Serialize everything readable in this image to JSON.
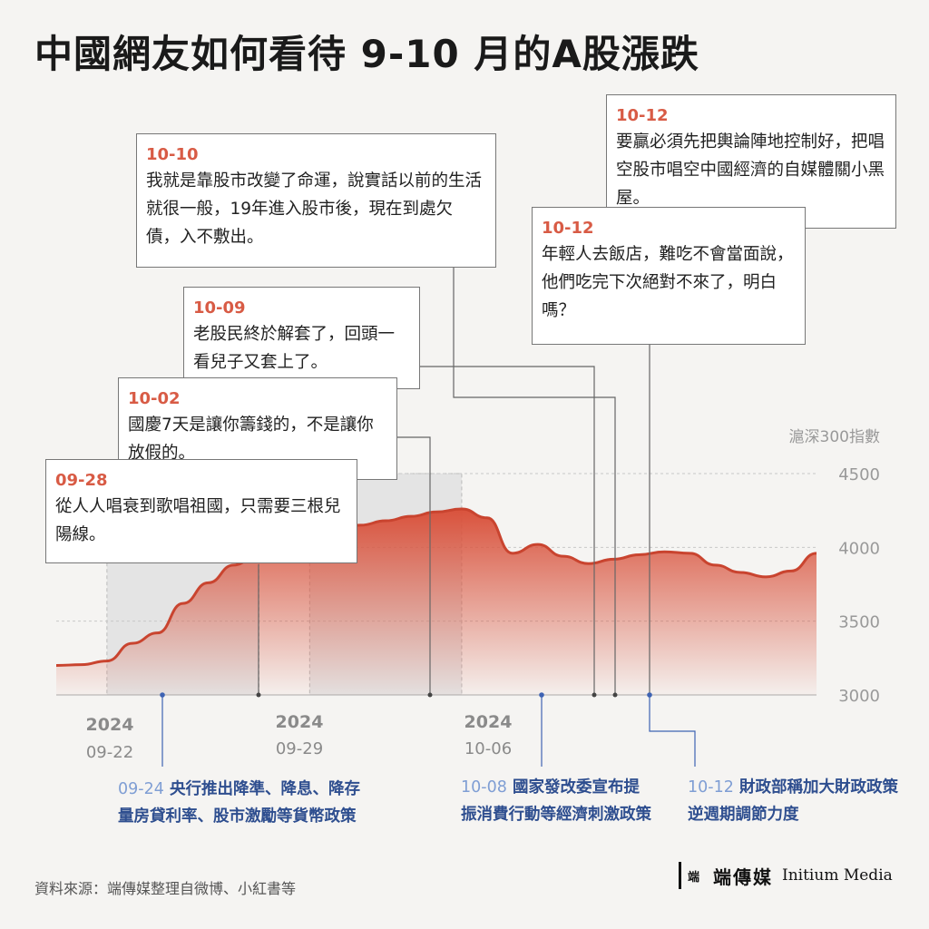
{
  "title": "中國網友如何看待 9-10 月的A股漲跌",
  "chart_data": {
    "type": "area",
    "ylabel": "滬深300指數",
    "ylim": [
      3000,
      4500
    ],
    "yticks": [
      3000,
      3500,
      4000,
      4500
    ],
    "x_tick_labels": [
      {
        "year": "2024",
        "date": "09-22"
      },
      {
        "year": "2024",
        "date": "09-29"
      },
      {
        "year": "2024",
        "date": "10-06"
      }
    ],
    "x": [
      "09-20",
      "09-22",
      "09-23",
      "09-24",
      "09-25",
      "09-26",
      "09-27",
      "09-28",
      "09-29",
      "09-30",
      "10-01",
      "10-02",
      "10-03",
      "10-04",
      "10-05",
      "10-06",
      "10-07",
      "10-08",
      "10-09",
      "10-10",
      "10-11",
      "10-12",
      "10-13",
      "10-14",
      "10-15",
      "10-16",
      "10-17",
      "10-18",
      "10-19",
      "10-20",
      "10-21"
    ],
    "values": [
      3200,
      3205,
      3230,
      3350,
      3420,
      3620,
      3760,
      3880,
      3960,
      4030,
      4080,
      4120,
      4150,
      4180,
      4210,
      4240,
      4260,
      4200,
      3960,
      4020,
      3940,
      3890,
      3920,
      3950,
      3970,
      3960,
      3880,
      3830,
      3800,
      3840,
      3960
    ],
    "shaded_ranges": [
      [
        "09-23",
        "09-29"
      ],
      [
        "10-01",
        "10-07"
      ]
    ]
  },
  "quotes": [
    {
      "date": "10-10",
      "text": "我就是靠股市改變了命運，說實話以前的生活就很一般，19年進入股市後，現在到處欠債，入不敷出。"
    },
    {
      "date": "10-09",
      "text": "老股民終於解套了，回頭一看兒子又套上了。"
    },
    {
      "date": "10-02",
      "text": "國慶7天是讓你籌錢的，不是讓你放假的。"
    },
    {
      "date": "09-28",
      "text": "從人人唱衰到歌唱祖國，只需要三根兒陽線。"
    },
    {
      "date": "10-12",
      "text": "要贏必須先把輿論陣地控制好，把唱空股市唱空中國經濟的自媒體關小黑屋。"
    },
    {
      "date": "10-12",
      "text": "年輕人去飯店，難吃不會當面說，他們吃完下次絕對不來了，明白嗎？"
    }
  ],
  "events": [
    {
      "date": "09-24",
      "text": "央行推出降準、降息、降存量房貸利率、股市激勵等貨幣政策"
    },
    {
      "date": "10-08",
      "text": "國家發改委宣布提振消費行動等經濟刺激政策"
    },
    {
      "date": "10-12",
      "text": "財政部稱加大財政政策逆週期調節力度"
    }
  ],
  "source": "資料來源：端傳媒整理自微博、小紅書等",
  "logo": {
    "mark": "端",
    "cn": "端傳媒",
    "en": "Initium Media"
  },
  "colors": {
    "area": "#d9523c",
    "quote_date": "#d85b45",
    "event": "#2e4e8f",
    "event_date": "#7f9ed4"
  }
}
